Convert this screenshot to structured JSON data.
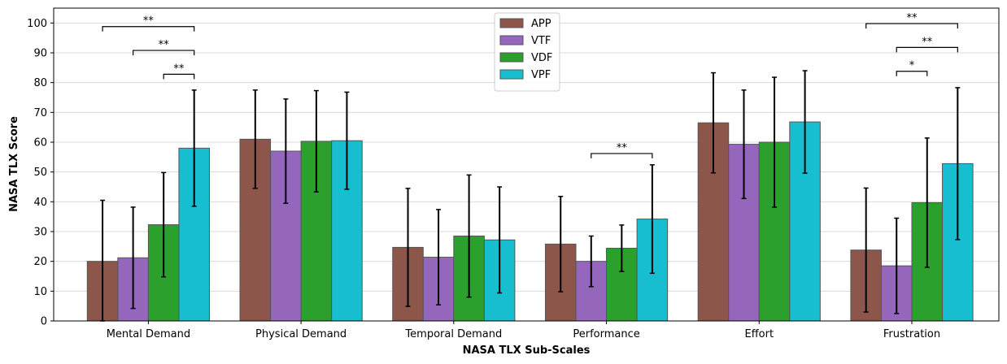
{
  "chart_data": {
    "type": "bar",
    "xlabel": "NASA TLX Sub-Scales",
    "ylabel": "NASA TLX Score",
    "ylim": [
      0,
      105
    ],
    "yticks": [
      0,
      10,
      20,
      30,
      40,
      50,
      60,
      70,
      80,
      90,
      100
    ],
    "grid": "horizontal",
    "legend_position": "top-center",
    "categories": [
      "Mental Demand",
      "Physical Demand",
      "Temporal Demand",
      "Performance",
      "Effort",
      "Frustration"
    ],
    "series": [
      {
        "name": "APP",
        "color": "#8c564b",
        "values": [
          20.0,
          61.0,
          24.7,
          25.8,
          66.5,
          23.8
        ],
        "error": [
          20.5,
          16.5,
          19.8,
          16.0,
          16.8,
          20.8
        ]
      },
      {
        "name": "VTF",
        "color": "#9467bd",
        "values": [
          21.2,
          57.0,
          21.4,
          20.0,
          59.3,
          18.5
        ],
        "error": [
          17.0,
          17.5,
          16.0,
          8.5,
          18.2,
          16.0
        ]
      },
      {
        "name": "VDF",
        "color": "#2ca02c",
        "values": [
          32.3,
          60.3,
          28.5,
          24.4,
          60.0,
          39.7
        ],
        "error": [
          17.5,
          17.0,
          20.5,
          7.8,
          21.8,
          21.7
        ]
      },
      {
        "name": "VPF",
        "color": "#17becf",
        "values": [
          58.0,
          60.5,
          27.2,
          34.2,
          66.8,
          52.8
        ],
        "error": [
          19.5,
          16.3,
          17.8,
          18.2,
          17.2,
          25.5
        ]
      }
    ],
    "annotations": [
      {
        "category": 0,
        "from": 0,
        "to": 3,
        "y": 98.8,
        "label": "**"
      },
      {
        "category": 0,
        "from": 1,
        "to": 3,
        "y": 90.8,
        "label": "**"
      },
      {
        "category": 0,
        "from": 2,
        "to": 3,
        "y": 82.8,
        "label": "**"
      },
      {
        "category": 3,
        "from": 1,
        "to": 3,
        "y": 56.2,
        "label": "**"
      },
      {
        "category": 5,
        "from": 0,
        "to": 3,
        "y": 99.8,
        "label": "**"
      },
      {
        "category": 5,
        "from": 1,
        "to": 3,
        "y": 91.8,
        "label": "**"
      },
      {
        "category": 5,
        "from": 1,
        "to": 2,
        "y": 83.8,
        "label": "*"
      }
    ]
  }
}
